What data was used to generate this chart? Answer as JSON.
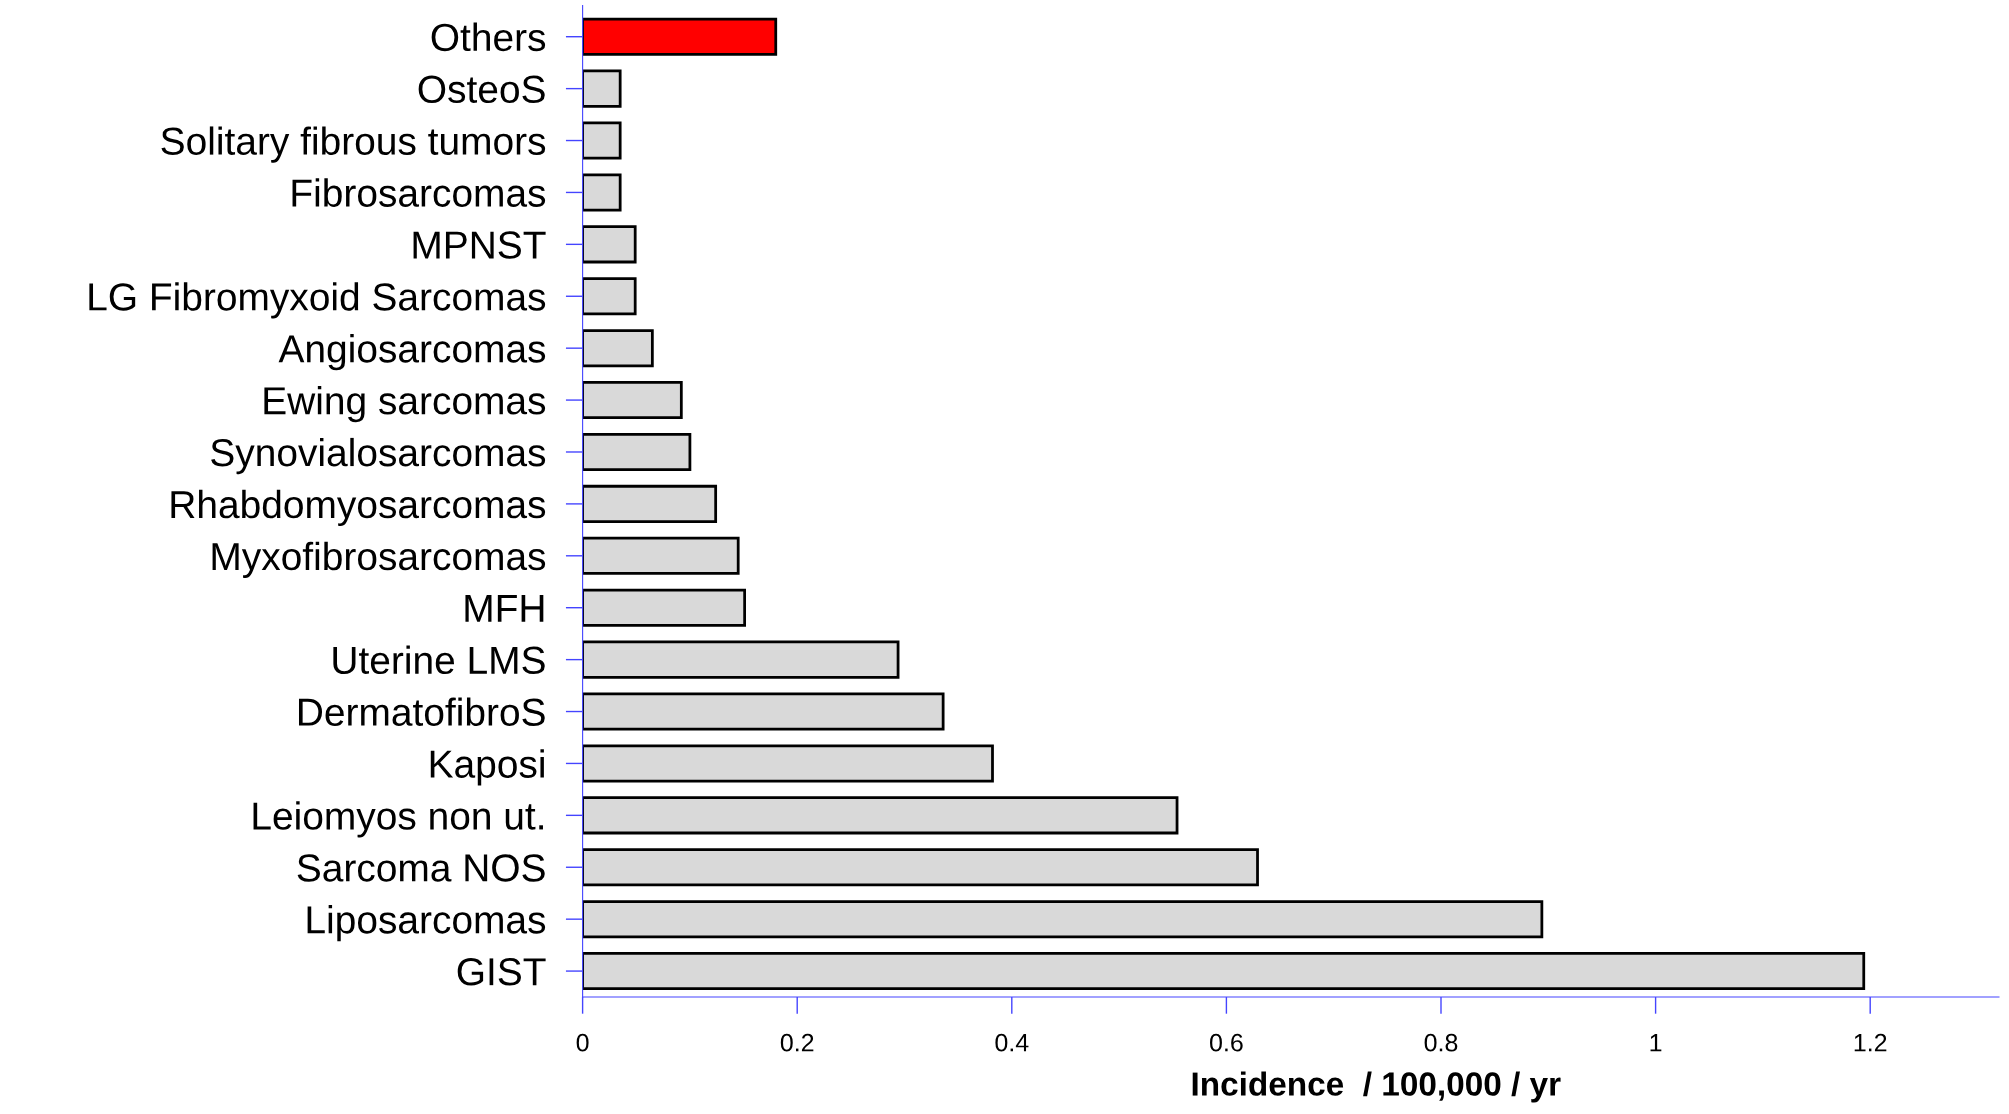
{
  "chart_data": {
    "type": "bar",
    "orientation": "horizontal",
    "xlabel": "Incidence  / 100,000 / yr",
    "categories": [
      "Others",
      "OsteoS",
      "Solitary fibrous tumors",
      "Fibrosarcomas",
      "MPNST",
      "LG Fibromyxoid Sarcomas",
      "Angiosarcomas",
      "Ewing sarcomas",
      "Synovialosarcomas",
      "Rhabdomyosarcomas",
      "Myxofibrosarcomas",
      "MFH",
      "Uterine LMS",
      "DermatofibroS",
      "Kaposi",
      "Leiomyos non ut.",
      "Sarcoma NOS",
      "Liposarcomas",
      "GIST"
    ],
    "values": [
      0.18,
      0.035,
      0.035,
      0.035,
      0.049,
      0.049,
      0.065,
      0.092,
      0.1,
      0.124,
      0.145,
      0.151,
      0.294,
      0.336,
      0.382,
      0.554,
      0.629,
      0.894,
      1.194
    ],
    "colors": [
      "#ff0000",
      "#d9d9d9",
      "#d9d9d9",
      "#d9d9d9",
      "#d9d9d9",
      "#d9d9d9",
      "#d9d9d9",
      "#d9d9d9",
      "#d9d9d9",
      "#d9d9d9",
      "#d9d9d9",
      "#d9d9d9",
      "#d9d9d9",
      "#d9d9d9",
      "#d9d9d9",
      "#d9d9d9",
      "#d9d9d9",
      "#d9d9d9",
      "#d9d9d9"
    ],
    "xlim": [
      0,
      1.32
    ],
    "xticks": [
      0,
      0.2,
      0.4,
      0.6,
      0.8,
      1,
      1.2
    ],
    "grid": false,
    "legend": false
  }
}
